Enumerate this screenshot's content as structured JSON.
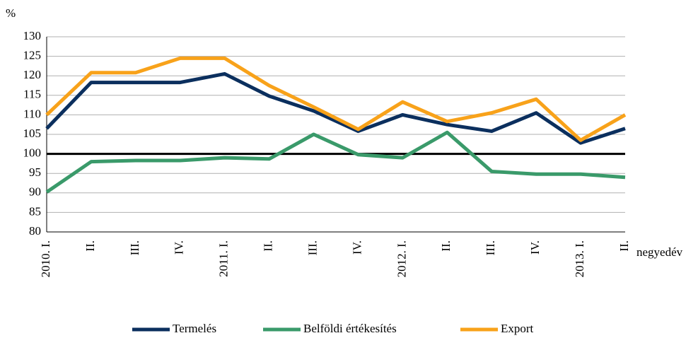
{
  "chart_data": {
    "type": "line",
    "y_label": "%",
    "x_label": "negyedév",
    "categories": [
      "2010. I.",
      "II.",
      "III.",
      "IV.",
      "2011. I.",
      "II.",
      "III.",
      "IV.",
      "2012. I.",
      "II.",
      "III.",
      "IV.",
      "2013. I.",
      "II."
    ],
    "series": [
      {
        "name": "Termelés",
        "color": "#0b2f5e",
        "values": [
          106.5,
          118.3,
          118.3,
          118.3,
          120.5,
          114.8,
          111,
          105.8,
          110,
          107.5,
          105.8,
          110.5,
          102.8,
          106.5
        ]
      },
      {
        "name": "Belföldi értékesítés",
        "color": "#3a9a6a",
        "values": [
          90.2,
          98,
          98.3,
          98.3,
          99,
          98.7,
          105,
          99.8,
          99,
          105.5,
          95.5,
          94.8,
          94.8,
          94
        ]
      },
      {
        "name": "Export",
        "color": "#f8a21a",
        "values": [
          110,
          120.8,
          120.8,
          124.5,
          124.5,
          117.5,
          112,
          106.3,
          113.3,
          108.3,
          110.5,
          114,
          103.5,
          110
        ]
      }
    ],
    "ylim": [
      80,
      130
    ],
    "yticks": [
      80,
      85,
      90,
      95,
      100,
      105,
      110,
      115,
      120,
      125,
      130
    ],
    "reference_line": 100,
    "grid": true,
    "legend": "bottom"
  }
}
